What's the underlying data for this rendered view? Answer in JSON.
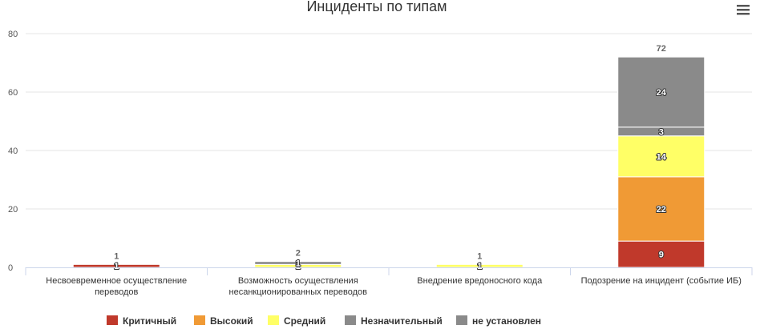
{
  "chart_data": {
    "type": "bar",
    "stacked": true,
    "title": "Инциденты по типам",
    "xlabel": "",
    "ylabel": "",
    "ylim": [
      0,
      80
    ],
    "yticks": [
      "0",
      "20",
      "40",
      "60",
      "80"
    ],
    "grid": true,
    "legend_position": "bottom",
    "categories": [
      [
        "Несвоевременное осуществление",
        "переводов"
      ],
      [
        "Возможность осуществления",
        "несанкционированных переводов"
      ],
      [
        "Внедрение вредоносного кода"
      ],
      [
        "Подозрение на инцидент (событие ИБ)"
      ]
    ],
    "totals": [
      1,
      2,
      1,
      72
    ],
    "series": [
      {
        "name": "Критичный",
        "color": "#c0392b",
        "values": [
          1,
          0,
          0,
          9
        ]
      },
      {
        "name": "Высокий",
        "color": "#f09a35",
        "values": [
          0,
          0,
          0,
          22
        ]
      },
      {
        "name": "Средний",
        "color": "#ffff66",
        "values": [
          0,
          1,
          1,
          14
        ]
      },
      {
        "name": "Незначительный",
        "color": "#8a8a8a",
        "values": [
          0,
          0,
          0,
          3
        ]
      },
      {
        "name": "не установлен",
        "color": "#8a8a8a",
        "values": [
          0,
          1,
          0,
          24
        ]
      }
    ]
  },
  "menu_icon": "hamburger-menu-icon"
}
